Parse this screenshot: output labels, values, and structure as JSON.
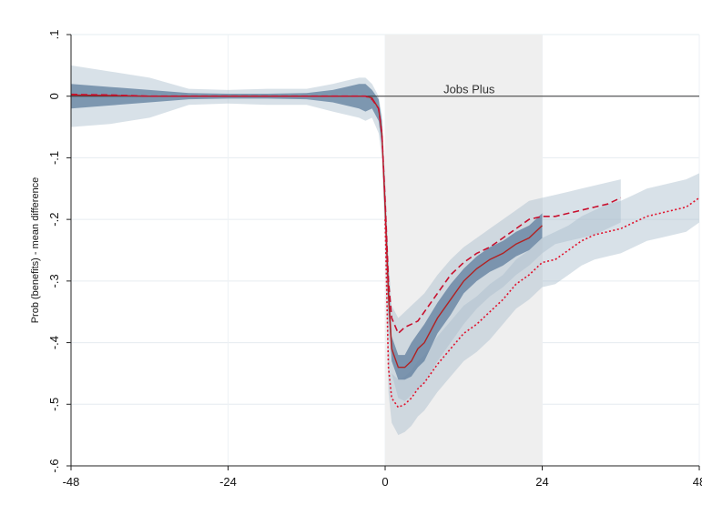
{
  "chart_data": {
    "type": "line",
    "title": "",
    "xlabel": "",
    "ylabel": "Prob (benefits) - mean difference",
    "xlim": [
      -48,
      48
    ],
    "ylim": [
      -0.6,
      0.1
    ],
    "x_ticks": [
      -48,
      -24,
      0,
      24,
      48
    ],
    "x_tick_labels": [
      "-48",
      "-24",
      "0",
      "24",
      "48"
    ],
    "y_ticks": [
      0.1,
      0,
      -0.1,
      -0.2,
      -0.3,
      -0.4,
      -0.5,
      -0.6
    ],
    "y_tick_labels": [
      ".1",
      "0",
      "-.1",
      "-.2",
      "-.3",
      "-.4",
      "-.5",
      "-.6"
    ],
    "grid": true,
    "reference_line_y": 0,
    "shaded_region": {
      "label": "Jobs Plus",
      "x_start": 0,
      "x_end": 24
    },
    "colors": {
      "solid_series": "#b22222",
      "dashed_series": "#c8102e",
      "dotted_series": "#e0112b",
      "inner_band": "#5f7e9e",
      "outer_band": "#a9bccd",
      "shaded_region": "#efefef"
    },
    "x": [
      -48,
      -42,
      -36,
      -30,
      -24,
      -18,
      -12,
      -8,
      -6,
      -4,
      -3,
      -2,
      -1,
      -0.5,
      0,
      0.5,
      1,
      2,
      3,
      4,
      5,
      6,
      8,
      10,
      12,
      14,
      16,
      18,
      20,
      22,
      24,
      26,
      28,
      30,
      32,
      34,
      36,
      38,
      40,
      42,
      44,
      46,
      48
    ],
    "series": [
      {
        "style": "solid",
        "values": [
          0.002,
          0.001,
          0,
          0,
          0,
          0,
          0,
          0,
          0,
          0,
          0,
          -0.003,
          -0.02,
          -0.06,
          -0.18,
          -0.32,
          -0.41,
          -0.44,
          -0.44,
          -0.43,
          -0.41,
          -0.4,
          -0.36,
          -0.33,
          -0.3,
          -0.28,
          -0.265,
          -0.255,
          -0.24,
          -0.23,
          -0.21,
          null,
          null,
          null,
          null,
          null,
          null,
          null,
          null,
          null,
          null,
          null,
          null
        ],
        "band_inner": {
          "upper": [
            0.02,
            0.015,
            0.01,
            0.005,
            0.004,
            0.004,
            0.005,
            0.01,
            0.015,
            0.02,
            0.02,
            0.01,
            -0.005,
            -0.04,
            -0.15,
            -0.28,
            -0.39,
            -0.42,
            -0.42,
            -0.4,
            -0.385,
            -0.37,
            -0.335,
            -0.305,
            -0.28,
            -0.26,
            -0.245,
            -0.235,
            -0.22,
            -0.21,
            -0.19,
            null,
            null,
            null,
            null,
            null,
            null,
            null,
            null,
            null,
            null,
            null,
            null
          ],
          "lower": [
            -0.02,
            -0.015,
            -0.01,
            -0.005,
            -0.004,
            -0.004,
            -0.005,
            -0.01,
            -0.015,
            -0.02,
            -0.025,
            -0.02,
            -0.04,
            -0.08,
            -0.21,
            -0.35,
            -0.43,
            -0.46,
            -0.46,
            -0.455,
            -0.44,
            -0.43,
            -0.385,
            -0.355,
            -0.32,
            -0.3,
            -0.285,
            -0.275,
            -0.26,
            -0.25,
            -0.23,
            null,
            null,
            null,
            null,
            null,
            null,
            null,
            null,
            null,
            null,
            null,
            null
          ]
        }
      },
      {
        "style": "dashed",
        "values": [
          0.003,
          0.002,
          0,
          0,
          0,
          0,
          0,
          0,
          0,
          0,
          0,
          -0.005,
          -0.02,
          -0.06,
          -0.17,
          -0.3,
          -0.36,
          -0.385,
          -0.375,
          -0.37,
          -0.365,
          -0.35,
          -0.32,
          -0.29,
          -0.27,
          -0.255,
          -0.245,
          -0.23,
          -0.215,
          -0.2,
          -0.195,
          -0.195,
          -0.19,
          -0.185,
          -0.18,
          -0.175,
          -0.165,
          null,
          null,
          null,
          null,
          null,
          null
        ],
        "band_outer": {
          "upper": [
            0.05,
            0.04,
            0.03,
            0.012,
            0.01,
            0.012,
            0.012,
            0.02,
            0.025,
            0.03,
            0.03,
            0.02,
            0.0,
            -0.03,
            -0.13,
            -0.26,
            -0.34,
            -0.36,
            -0.35,
            -0.34,
            -0.33,
            -0.32,
            -0.29,
            -0.265,
            -0.245,
            -0.23,
            -0.215,
            -0.2,
            -0.185,
            -0.17,
            -0.165,
            -0.16,
            -0.155,
            -0.15,
            -0.145,
            -0.14,
            -0.135,
            null,
            null,
            null,
            null,
            null,
            null
          ],
          "lower": [
            -0.05,
            -0.045,
            -0.035,
            -0.014,
            -0.012,
            -0.014,
            -0.014,
            -0.025,
            -0.03,
            -0.035,
            -0.04,
            -0.035,
            -0.06,
            -0.1,
            -0.24,
            -0.39,
            -0.45,
            -0.49,
            -0.495,
            -0.485,
            -0.475,
            -0.465,
            -0.43,
            -0.4,
            -0.37,
            -0.345,
            -0.325,
            -0.31,
            -0.29,
            -0.275,
            -0.255,
            -0.24,
            -0.235,
            -0.23,
            -0.225,
            -0.215,
            -0.205,
            null,
            null,
            null,
            null,
            null,
            null
          ]
        }
      },
      {
        "style": "dotted",
        "values": [
          null,
          null,
          null,
          null,
          null,
          null,
          null,
          null,
          null,
          null,
          null,
          null,
          null,
          null,
          -0.2,
          -0.44,
          -0.49,
          -0.505,
          -0.5,
          -0.49,
          -0.475,
          -0.465,
          -0.435,
          -0.41,
          -0.385,
          -0.37,
          -0.35,
          -0.33,
          -0.305,
          -0.29,
          -0.27,
          -0.265,
          -0.25,
          -0.235,
          -0.225,
          -0.22,
          -0.215,
          -0.205,
          -0.195,
          -0.19,
          -0.185,
          -0.18,
          -0.165
        ],
        "band_outer": {
          "upper": [
            null,
            null,
            null,
            null,
            null,
            null,
            null,
            null,
            null,
            null,
            null,
            null,
            null,
            null,
            -0.17,
            -0.4,
            -0.45,
            -0.46,
            -0.455,
            -0.445,
            -0.43,
            -0.42,
            -0.39,
            -0.365,
            -0.34,
            -0.325,
            -0.305,
            -0.29,
            -0.265,
            -0.25,
            -0.23,
            -0.22,
            -0.21,
            -0.195,
            -0.185,
            -0.175,
            -0.17,
            -0.16,
            -0.15,
            -0.145,
            -0.14,
            -0.135,
            -0.125
          ],
          "lower": [
            null,
            null,
            null,
            null,
            null,
            null,
            null,
            null,
            null,
            null,
            null,
            null,
            null,
            null,
            -0.23,
            -0.48,
            -0.53,
            -0.55,
            -0.545,
            -0.535,
            -0.52,
            -0.51,
            -0.48,
            -0.455,
            -0.43,
            -0.415,
            -0.395,
            -0.37,
            -0.345,
            -0.33,
            -0.31,
            -0.305,
            -0.29,
            -0.275,
            -0.265,
            -0.26,
            -0.255,
            -0.245,
            -0.235,
            -0.23,
            -0.225,
            -0.22,
            -0.205
          ]
        }
      }
    ]
  }
}
